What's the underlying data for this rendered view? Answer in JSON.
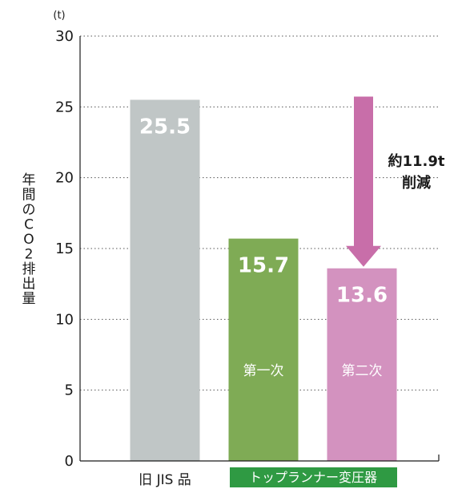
{
  "chart_data": {
    "type": "bar",
    "unit_label": "(t)",
    "ylabel_chars": [
      "年",
      "間",
      "の",
      "C",
      "O",
      "2",
      "排",
      "出",
      "量"
    ],
    "ylim": [
      0,
      30
    ],
    "yticks": [
      0,
      5,
      10,
      15,
      20,
      25,
      30
    ],
    "grid": "dotted",
    "categories": [
      "旧 JIS 品",
      "第一次",
      "第二次"
    ],
    "values": [
      25.5,
      15.7,
      13.6
    ],
    "value_labels": [
      "25.5",
      "15.7",
      "13.6"
    ],
    "bar_colors": [
      "#c0c6c6",
      "#7fab55",
      "#d392bf"
    ],
    "group_label": "トップランナー変圧器",
    "group_color": "#2f9a43",
    "annotation": {
      "line1": "約11.9t",
      "line2": "削減",
      "arrow_color": "#c86ea9",
      "from": 25.5,
      "to": 13.6
    }
  }
}
